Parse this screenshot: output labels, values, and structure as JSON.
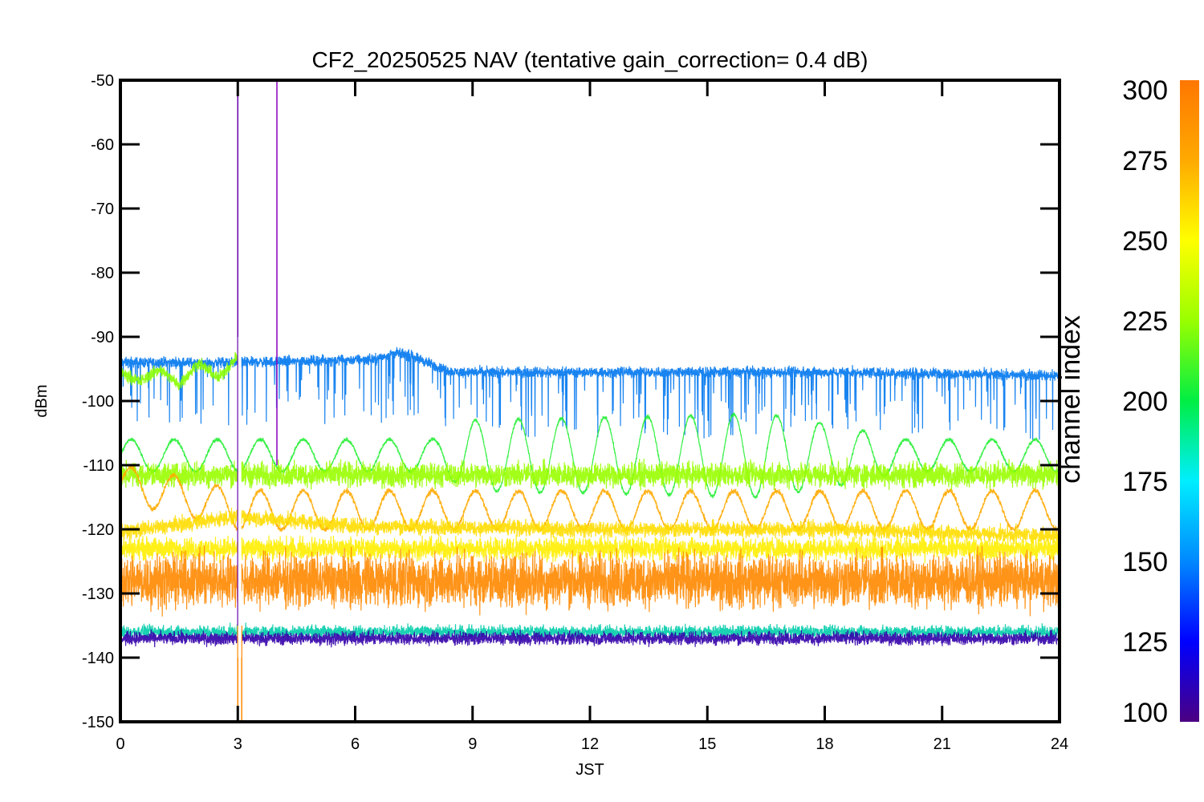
{
  "chart_data": {
    "type": "line",
    "title": "CF2_20250525 NAV (tentative gain_correction=  0.4 dB)",
    "xlabel": "JST",
    "ylabel": "dBm",
    "xlim": [
      0,
      24
    ],
    "ylim": [
      -150,
      -50
    ],
    "x_ticks": [
      "0",
      "3",
      "6",
      "9",
      "12",
      "15",
      "18",
      "21",
      "24"
    ],
    "y_ticks": [
      "-50",
      "-60",
      "-70",
      "-80",
      "-90",
      "-100",
      "-110",
      "-120",
      "-130",
      "-140",
      "-150"
    ],
    "colorbar": {
      "label": "channel index",
      "range": [
        100,
        300
      ],
      "ticks": [
        "300",
        "275",
        "250",
        "225",
        "200",
        "175",
        "150",
        "125",
        "100"
      ],
      "colormap": [
        "#4b0082",
        "#0000ff",
        "#0088ff",
        "#00eeff",
        "#00ee44",
        "#99ff00",
        "#ffff00",
        "#ffaa00",
        "#ff7700"
      ]
    },
    "series": [
      {
        "channel": 150,
        "color": "#0077ee",
        "mean": [
          [
            0,
            -94
          ],
          [
            3,
            -94
          ],
          [
            6.5,
            -93.5
          ],
          [
            7,
            -92.5
          ],
          [
            7.5,
            -93
          ],
          [
            8,
            -94.5
          ],
          [
            8.5,
            -95.5
          ],
          [
            12,
            -95.5
          ],
          [
            18,
            -95.5
          ],
          [
            24,
            -96
          ]
        ],
        "noise": 1.2,
        "dips": true
      },
      {
        "channel": 260,
        "color": "#88ff00",
        "mean": [
          [
            0,
            -95.5
          ],
          [
            0.5,
            -97
          ],
          [
            1,
            -95
          ],
          [
            1.5,
            -97.5
          ],
          [
            2,
            -94
          ],
          [
            2.5,
            -96.5
          ],
          [
            3,
            -93
          ]
        ],
        "noise": 1.4,
        "dips": false
      },
      {
        "channel": 240,
        "color": "#22ee33",
        "mean": [
          [
            0,
            -108.5
          ],
          [
            24,
            -108.5
          ]
        ],
        "osc_amp": 2.5,
        "osc_period": 1.1,
        "growth": [
          [
            0,
            0
          ],
          [
            8,
            0
          ],
          [
            9,
            3
          ],
          [
            16.5,
            4
          ],
          [
            18.5,
            2
          ],
          [
            20,
            0
          ],
          [
            24,
            0
          ]
        ],
        "noise": 0.4
      },
      {
        "channel": 260,
        "color": "#99ff00",
        "mean": [
          [
            0,
            -111.5
          ],
          [
            24,
            -111.5
          ]
        ],
        "noise": 2.8,
        "dips": false
      },
      {
        "channel": 285,
        "color": "#ffaa00",
        "mean": [
          [
            0,
            -113
          ],
          [
            1,
            -114
          ],
          [
            3,
            -117
          ],
          [
            24,
            -117
          ]
        ],
        "osc_amp": 3,
        "osc_period": 1.1,
        "noise": 0.6
      },
      {
        "channel": 280,
        "color": "#ffdd00",
        "mean": [
          [
            0,
            -120.5
          ],
          [
            3,
            -118
          ],
          [
            6,
            -119.5
          ],
          [
            12,
            -120
          ],
          [
            18,
            -120
          ],
          [
            24,
            -121
          ]
        ],
        "noise": 1.8,
        "dips": false
      },
      {
        "channel": 270,
        "color": "#ffee00",
        "mean": [
          [
            0,
            -123
          ],
          [
            24,
            -123
          ]
        ],
        "noise": 2.5,
        "dips": false
      },
      {
        "channel": 295,
        "color": "#ff8800",
        "mean": [
          [
            0,
            -128
          ],
          [
            24,
            -128
          ]
        ],
        "noise": 6,
        "dips": false
      },
      {
        "channel": 180,
        "color": "#00ccaa",
        "mean": [
          [
            0,
            -136
          ],
          [
            24,
            -136
          ]
        ],
        "noise": 1.5,
        "dips": false
      },
      {
        "channel": 120,
        "color": "#3300aa",
        "mean": [
          [
            0,
            -137
          ],
          [
            24,
            -137
          ]
        ],
        "noise": 1.5,
        "dips": false
      }
    ],
    "spikes": [
      {
        "x": 3.0,
        "y1": -150,
        "y2": -50,
        "color": "#6600aa"
      },
      {
        "x": 4.0,
        "y1": -110,
        "y2": -50,
        "color": "#8800bb"
      },
      {
        "x": 3.0,
        "y1": -150,
        "y2": -135,
        "color": "#ff8800"
      },
      {
        "x": 3.1,
        "y1": -150,
        "y2": -135,
        "color": "#ff8800"
      }
    ],
    "gaps": [
      {
        "x": 3.05,
        "y1": -140,
        "y2": -90
      }
    ]
  }
}
